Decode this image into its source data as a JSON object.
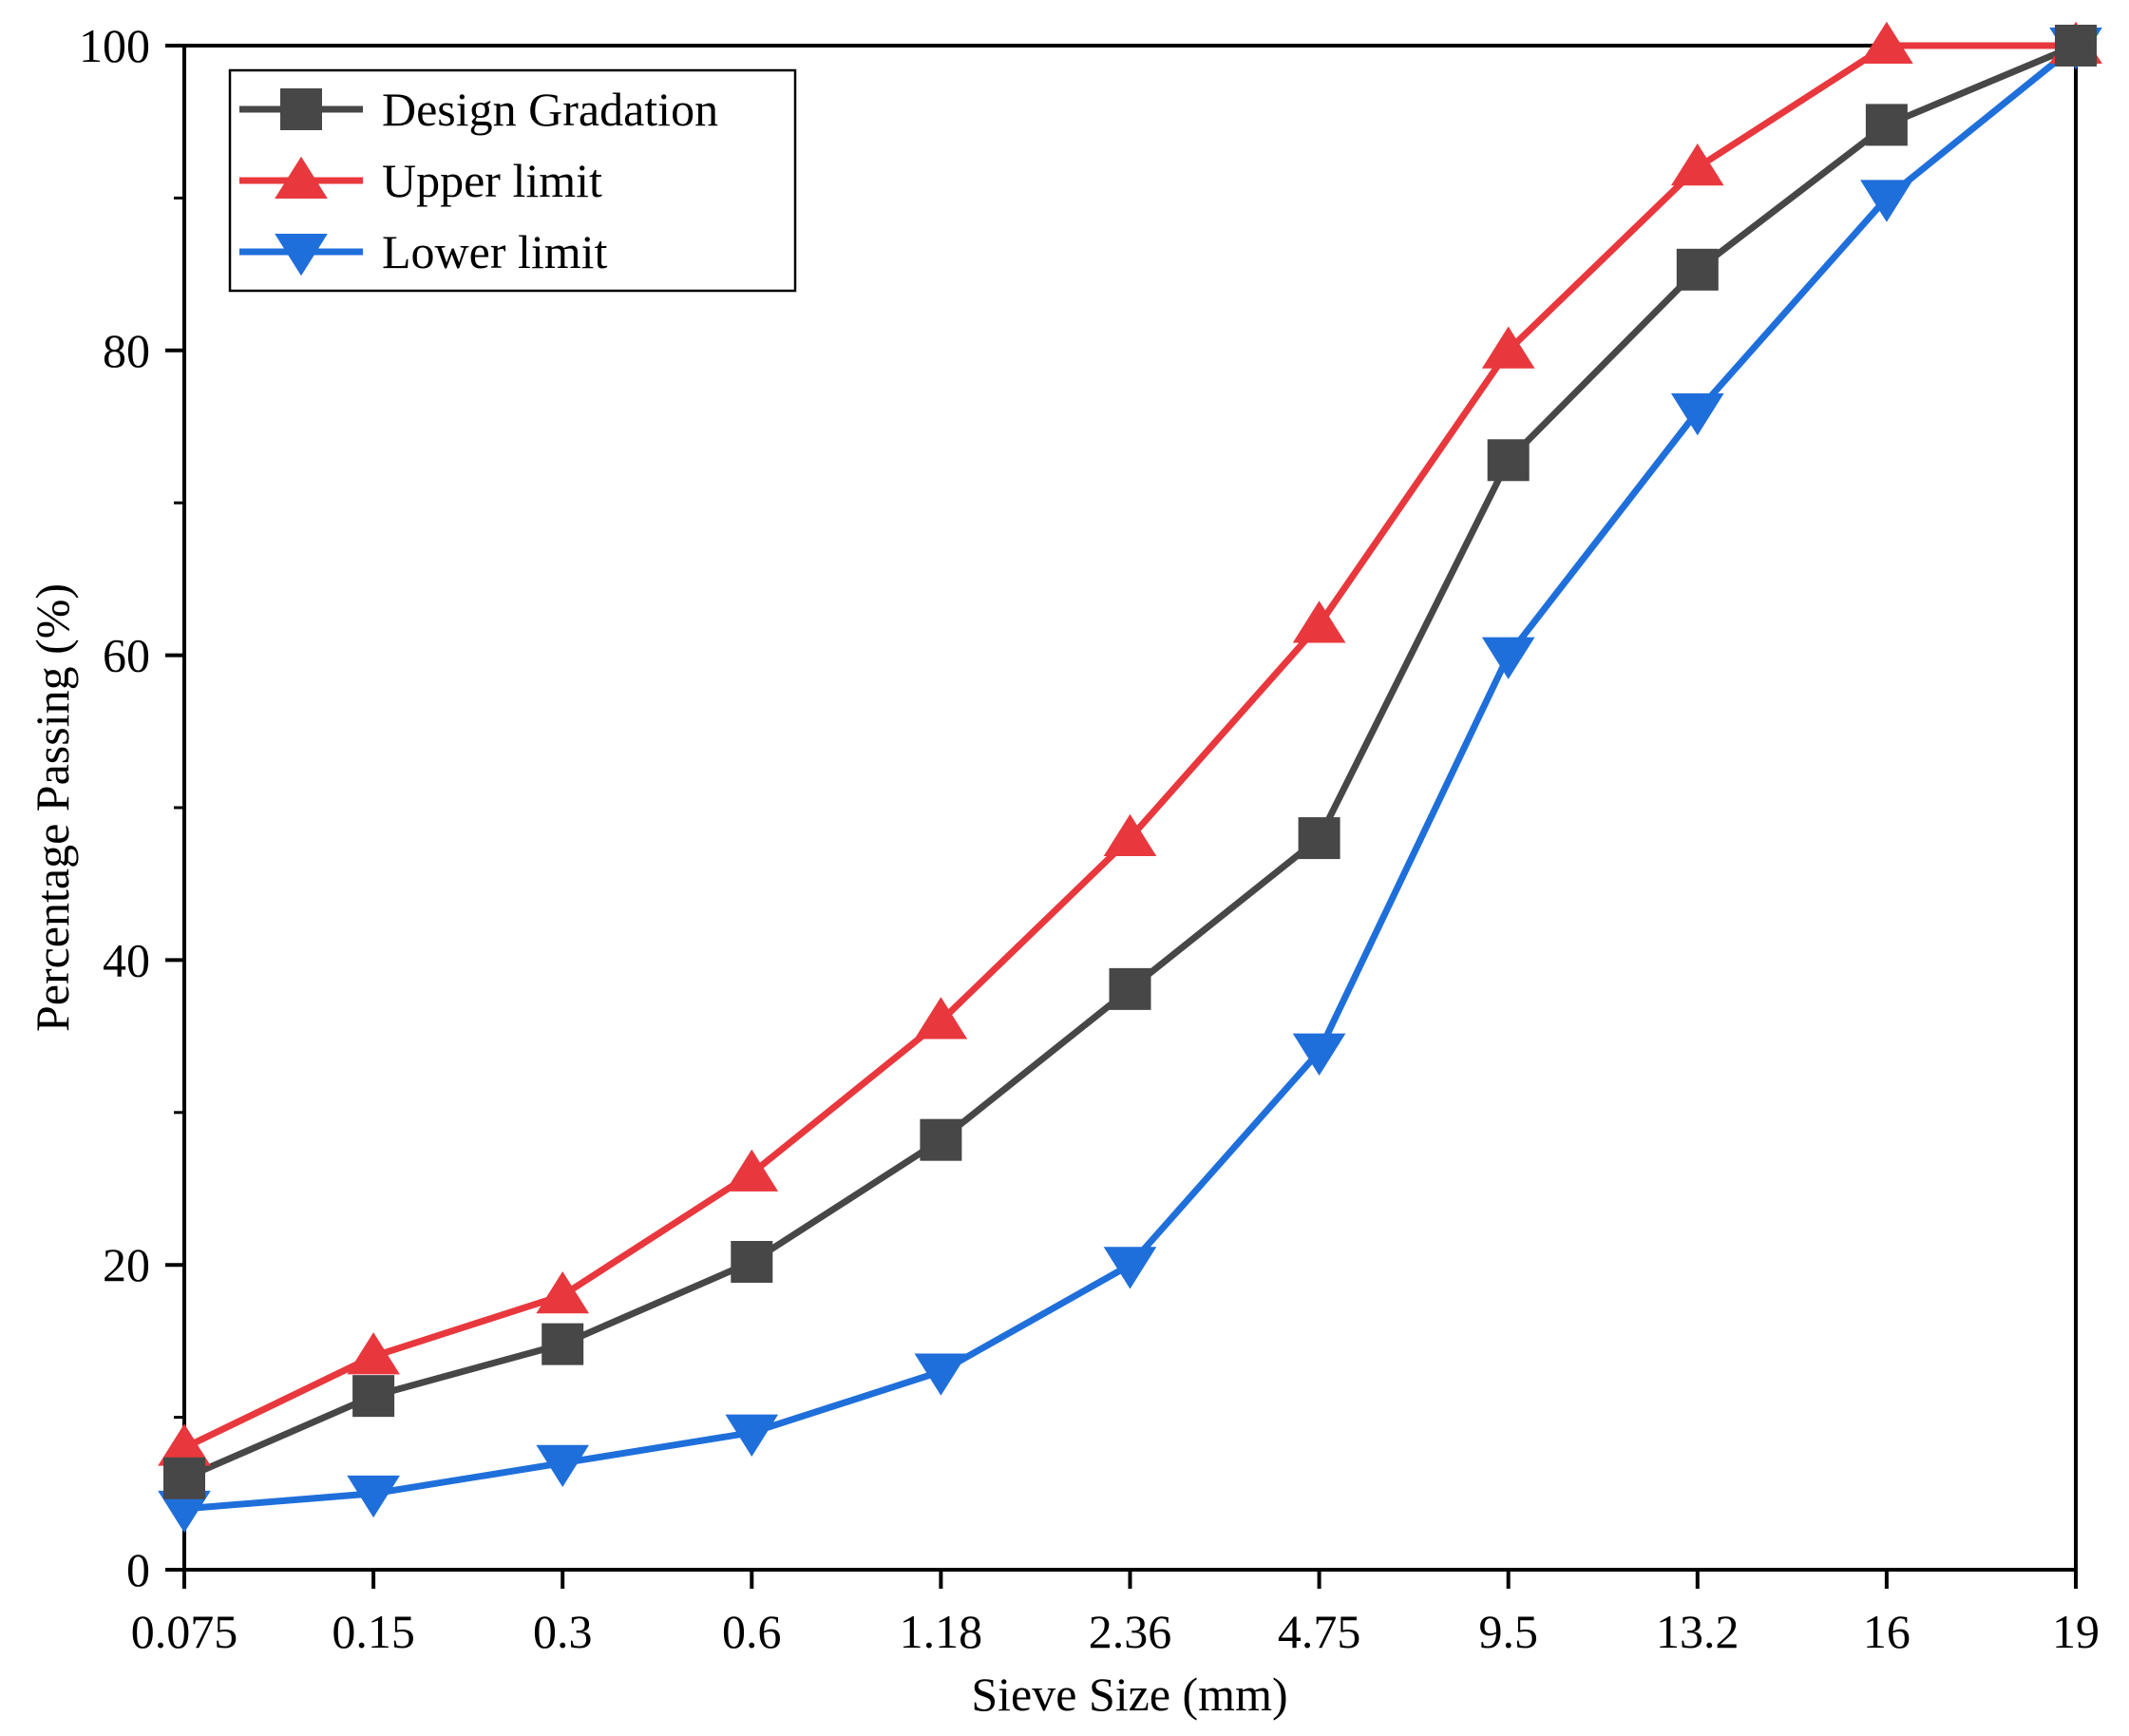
{
  "chart_data": {
    "type": "line",
    "title": "",
    "xlabel": "Sieve Size (mm)",
    "ylabel": "Percentage Passing (%)",
    "categories": [
      "0.075",
      "0.15",
      "0.3",
      "0.6",
      "1.18",
      "2.36",
      "4.75",
      "9.5",
      "13.2",
      "16",
      "19"
    ],
    "ylim": [
      0,
      100
    ],
    "yticks": [
      0,
      20,
      40,
      60,
      80,
      100
    ],
    "grid": false,
    "legend_position": "top-left",
    "series": [
      {
        "name": "Design Gradation",
        "color": "#474747",
        "marker": "square",
        "values": [
          6.0,
          11.4,
          14.8,
          20.2,
          28.2,
          38.1,
          48.0,
          72.8,
          85.3,
          94.8,
          100
        ]
      },
      {
        "name": "Upper limit",
        "color": "#e8383d",
        "marker": "triangle-up",
        "values": [
          8,
          14,
          18,
          26,
          36,
          48,
          62,
          80,
          92,
          100,
          100
        ]
      },
      {
        "name": "Lower limit",
        "color": "#1f6fdb",
        "marker": "triangle-down",
        "values": [
          4,
          5,
          7,
          9,
          13,
          20,
          34,
          60,
          76,
          90,
          100
        ]
      }
    ]
  }
}
